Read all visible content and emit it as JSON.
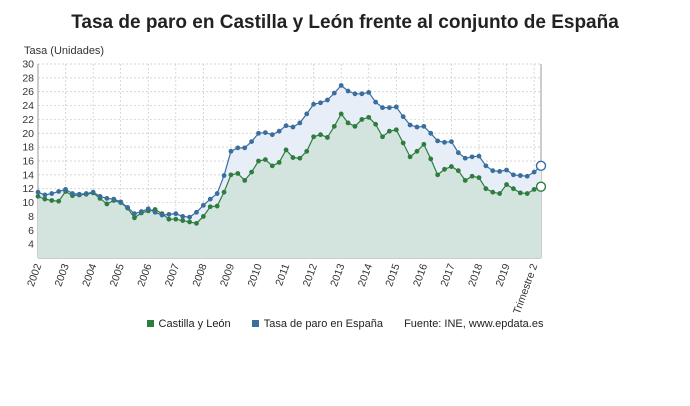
{
  "chart_data": {
    "type": "line",
    "title": "Tasa de paro en Castilla y León frente al conjunto de España",
    "ylabel": "Tasa (Unidades)",
    "xlabel": "",
    "ylim": [
      2,
      30
    ],
    "y_ticks": [
      4,
      6,
      8,
      10,
      12,
      14,
      16,
      18,
      20,
      22,
      24,
      26,
      28,
      30
    ],
    "x_tick_labels": [
      "2002",
      "2003",
      "2004",
      "2005",
      "2006",
      "2007",
      "2008",
      "2009",
      "2010",
      "2011",
      "2012",
      "2013",
      "2014",
      "2015",
      "2016",
      "2017",
      "2018",
      "2019",
      "Trimestre 2"
    ],
    "grid": true,
    "legend_position": "bottom",
    "source": "Fuente: INE, www.epdata.es",
    "colors": {
      "castilla": "#2e7d3e",
      "espana": "#3a6e9e"
    },
    "x_quarters": [
      "2002-T1",
      "2002-T2",
      "2002-T3",
      "2002-T4",
      "2003-T1",
      "2003-T2",
      "2003-T3",
      "2003-T4",
      "2004-T1",
      "2004-T2",
      "2004-T3",
      "2004-T4",
      "2005-T1",
      "2005-T2",
      "2005-T3",
      "2005-T4",
      "2006-T1",
      "2006-T2",
      "2006-T3",
      "2006-T4",
      "2007-T1",
      "2007-T2",
      "2007-T3",
      "2007-T4",
      "2008-T1",
      "2008-T2",
      "2008-T3",
      "2008-T4",
      "2009-T1",
      "2009-T2",
      "2009-T3",
      "2009-T4",
      "2010-T1",
      "2010-T2",
      "2010-T3",
      "2010-T4",
      "2011-T1",
      "2011-T2",
      "2011-T3",
      "2011-T4",
      "2012-T1",
      "2012-T2",
      "2012-T3",
      "2012-T4",
      "2013-T1",
      "2013-T2",
      "2013-T3",
      "2013-T4",
      "2014-T1",
      "2014-T2",
      "2014-T3",
      "2014-T4",
      "2015-T1",
      "2015-T2",
      "2015-T3",
      "2015-T4",
      "2016-T1",
      "2016-T2",
      "2016-T3",
      "2016-T4",
      "2017-T1",
      "2017-T2",
      "2017-T3",
      "2017-T4",
      "2018-T1",
      "2018-T2",
      "2018-T3",
      "2018-T4",
      "2019-T1",
      "2019-T2",
      "2019-T3",
      "2019-T4",
      "2020-T1",
      "2020-T2"
    ],
    "series": [
      {
        "name": "Castilla y León",
        "values": [
          10.9,
          10.5,
          10.3,
          10.2,
          11.6,
          11.0,
          11.1,
          11.2,
          11.4,
          10.6,
          9.8,
          10.3,
          10.0,
          9.2,
          7.8,
          8.5,
          8.8,
          9.0,
          8.4,
          7.6,
          7.6,
          7.4,
          7.2,
          7.0,
          8.0,
          9.4,
          9.5,
          11.5,
          14.0,
          14.2,
          13.2,
          14.4,
          16.0,
          16.2,
          15.3,
          15.8,
          17.6,
          16.5,
          16.4,
          17.4,
          19.5,
          19.8,
          19.4,
          21.0,
          22.8,
          21.5,
          21.0,
          22.0,
          22.3,
          21.3,
          19.5,
          20.3,
          20.5,
          18.6,
          16.6,
          17.4,
          18.4,
          16.3,
          14.0,
          14.8,
          15.2,
          14.6,
          13.2,
          13.8,
          13.6,
          12.0,
          11.5,
          11.3,
          12.6,
          12.0,
          11.4,
          11.3,
          11.9,
          12.3
        ]
      },
      {
        "name": "Tasa de paro en España",
        "values": [
          11.5,
          11.1,
          11.3,
          11.6,
          11.9,
          11.3,
          11.2,
          11.3,
          11.5,
          10.9,
          10.6,
          10.5,
          10.1,
          9.3,
          8.4,
          8.7,
          9.1,
          8.6,
          8.2,
          8.3,
          8.4,
          8.0,
          7.9,
          8.6,
          9.6,
          10.5,
          11.3,
          13.9,
          17.4,
          17.9,
          17.9,
          18.8,
          20.0,
          20.1,
          19.8,
          20.3,
          21.1,
          20.9,
          21.5,
          22.8,
          24.2,
          24.4,
          24.8,
          25.8,
          26.9,
          26.1,
          25.7,
          25.7,
          25.9,
          24.5,
          23.7,
          23.7,
          23.8,
          22.4,
          21.2,
          20.9,
          21.0,
          20.0,
          18.9,
          18.7,
          18.8,
          17.2,
          16.4,
          16.6,
          16.7,
          15.3,
          14.6,
          14.5,
          14.7,
          14.0,
          13.9,
          13.8,
          14.4,
          15.3
        ]
      }
    ]
  }
}
